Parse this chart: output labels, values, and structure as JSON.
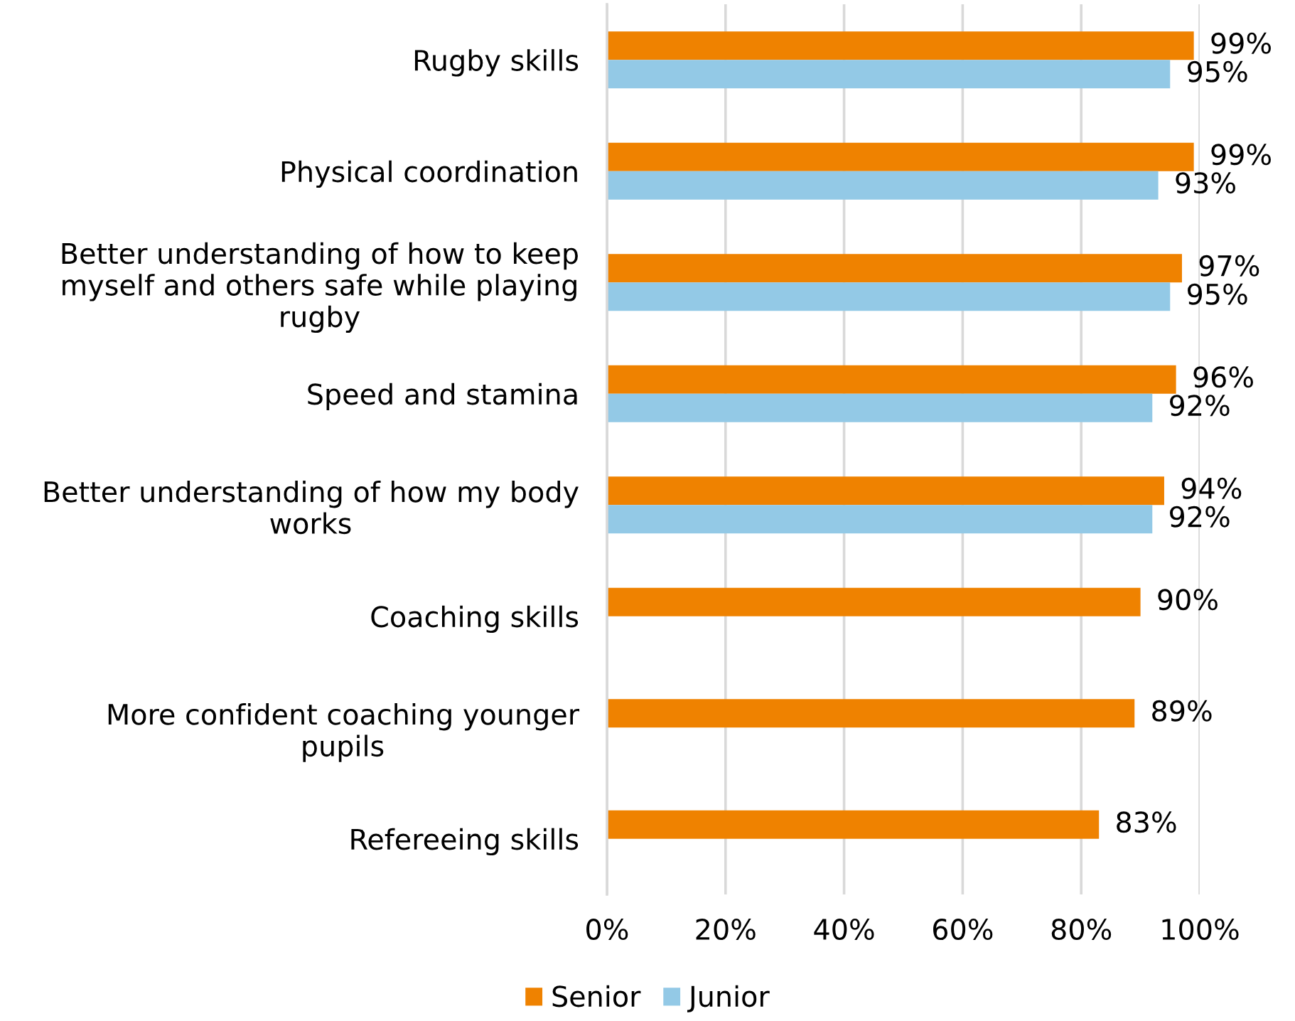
{
  "chart_data": {
    "type": "bar",
    "orientation": "horizontal",
    "categories": [
      "Rugby skills",
      "Physical coordination",
      "Better understanding of how to keep myself and others safe while playing rugby",
      "Speed and stamina",
      "Better understanding of how my body works",
      "Coaching skills",
      "More confident coaching younger pupils",
      "Refereeing skills"
    ],
    "series": [
      {
        "name": "Senior",
        "color": "#ef8200",
        "values": [
          99,
          99,
          97,
          96,
          94,
          90,
          89,
          83
        ],
        "value_labels": [
          "99%",
          "99%",
          "97%",
          "96%",
          "94%",
          "90%",
          "89%",
          "83%"
        ]
      },
      {
        "name": "Junior",
        "color": "#93c9e6",
        "values": [
          95,
          93,
          95,
          92,
          92,
          null,
          null,
          null
        ],
        "value_labels": [
          "95%",
          "93%",
          "95%",
          "92%",
          "92%",
          null,
          null,
          null
        ]
      }
    ],
    "xlim": [
      0,
      100
    ],
    "xticks": [
      {
        "value": 0,
        "label": "0%"
      },
      {
        "value": 20,
        "label": "20%"
      },
      {
        "value": 40,
        "label": "40%"
      },
      {
        "value": 60,
        "label": "60%"
      },
      {
        "value": 80,
        "label": "80%"
      },
      {
        "value": 100,
        "label": "100%"
      }
    ],
    "grid": "x",
    "legend": "bottom"
  }
}
